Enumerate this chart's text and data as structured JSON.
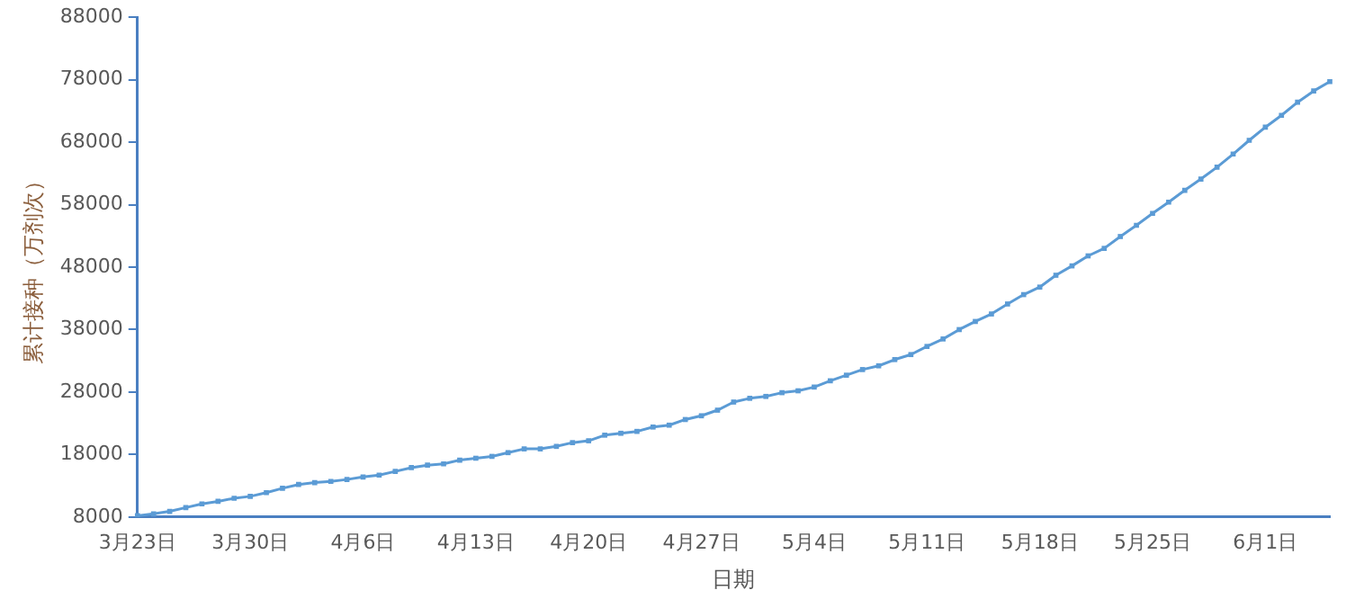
{
  "chart_data": {
    "type": "line",
    "xlabel": "日期",
    "ylabel": "累计接种（万剂次）",
    "categories": [
      "3月23日",
      null,
      null,
      null,
      null,
      null,
      null,
      "3月30日",
      null,
      null,
      null,
      null,
      null,
      null,
      "4月6日",
      null,
      null,
      null,
      null,
      null,
      null,
      "4月13日",
      null,
      null,
      null,
      null,
      null,
      null,
      "4月20日",
      null,
      null,
      null,
      null,
      null,
      null,
      "4月27日",
      null,
      null,
      null,
      null,
      null,
      null,
      "5月4日",
      null,
      null,
      null,
      null,
      null,
      null,
      "5月11日",
      null,
      null,
      null,
      null,
      null,
      null,
      "5月18日",
      null,
      null,
      null,
      null,
      null,
      null,
      "5月25日",
      null,
      null,
      null,
      null,
      null,
      null,
      "6月1日",
      null,
      null,
      null,
      null
    ],
    "series": [
      {
        "color": "#5b9bd5",
        "values": [
          8200,
          8500,
          8900,
          9500,
          10100,
          10500,
          11000,
          11300,
          11900,
          12600,
          13200,
          13500,
          13700,
          14000,
          14400,
          14700,
          15300,
          15900,
          16300,
          16500,
          17100,
          17400,
          17700,
          18300,
          18900,
          18900,
          19300,
          19900,
          20200,
          21100,
          21400,
          21700,
          22400,
          22700,
          23600,
          24200,
          25100,
          26400,
          27000,
          27300,
          27900,
          28200,
          28800,
          29800,
          30700,
          31600,
          32200,
          33200,
          34000,
          35300,
          36500,
          38000,
          39300,
          40500,
          42100,
          43600,
          44800,
          46700,
          48200,
          49800,
          51000,
          52900,
          54700,
          56600,
          58400,
          60300,
          62100,
          64000,
          66100,
          68300,
          70400,
          72300,
          74400,
          76200,
          77700
        ]
      }
    ],
    "ylim": [
      8000,
      88000
    ],
    "yticks": [
      8000,
      18000,
      28000,
      38000,
      48000,
      58000,
      68000,
      78000,
      88000
    ],
    "grid": false,
    "legend": false,
    "marker": "square",
    "line_style": "solid"
  }
}
